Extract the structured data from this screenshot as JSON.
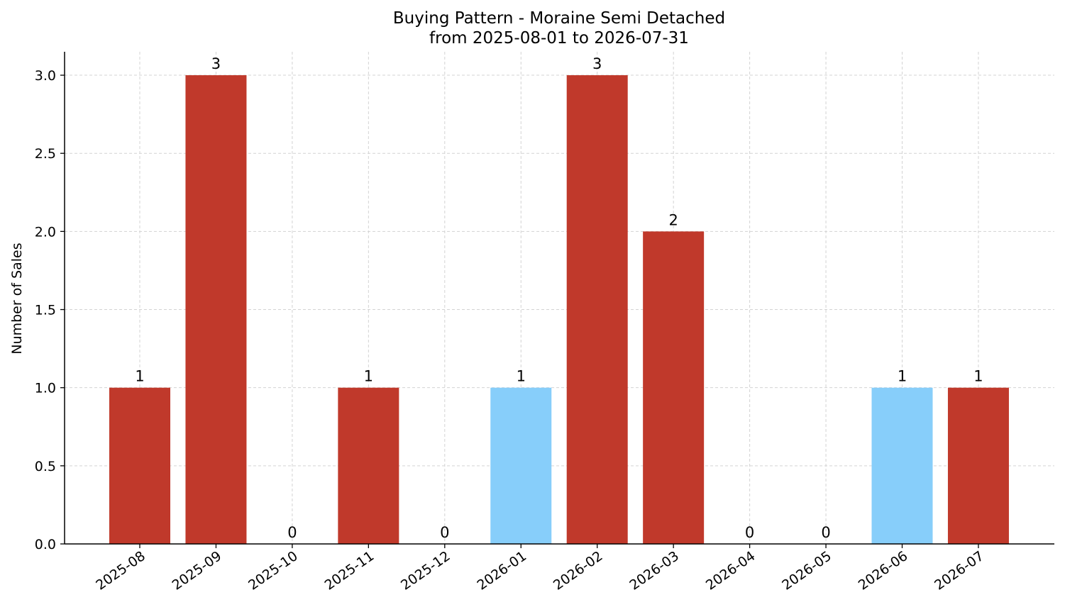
{
  "chart_data": {
    "type": "bar",
    "title": "Buying Pattern - Moraine Semi Detached",
    "subtitle": "from 2025-08-01 to 2026-07-31",
    "xlabel": "",
    "ylabel": "Number of Sales",
    "ylim": [
      0,
      3.15
    ],
    "yticks": [
      "0.0",
      "0.5",
      "1.0",
      "1.5",
      "2.0",
      "2.5",
      "3.0"
    ],
    "grid": true,
    "categories": [
      "2025-08",
      "2025-09",
      "2025-10",
      "2025-11",
      "2025-12",
      "2026-01",
      "2026-02",
      "2026-03",
      "2026-04",
      "2026-05",
      "2026-06",
      "2026-07"
    ],
    "values": [
      1,
      3,
      0,
      1,
      0,
      1,
      3,
      2,
      0,
      0,
      1,
      1
    ],
    "data_labels": [
      "1",
      "3",
      "0",
      "1",
      "0",
      "1",
      "3",
      "2",
      "0",
      "0",
      "1",
      "1"
    ],
    "bar_colors": [
      "#c0392b",
      "#c0392b",
      "#c0392b",
      "#c0392b",
      "#c0392b",
      "#87cefa",
      "#c0392b",
      "#c0392b",
      "#c0392b",
      "#c0392b",
      "#87cefa",
      "#c0392b"
    ]
  }
}
